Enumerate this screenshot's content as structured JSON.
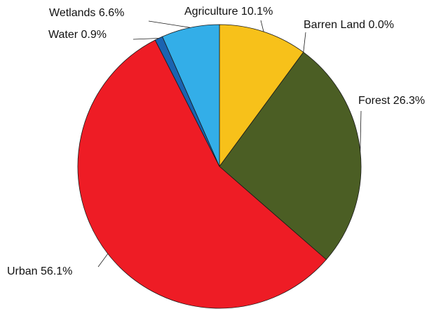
{
  "chart_data": {
    "type": "pie",
    "title": "",
    "start_angle_deg": 0,
    "direction": "clockwise",
    "slices": [
      {
        "label": "Agriculture",
        "value": 10.1,
        "text": "Agriculture 10.1%",
        "color": "#F7C11A"
      },
      {
        "label": "Barren Land",
        "value": 0.0,
        "text": "Barren Land 0.0%",
        "color": "#BFBFBF"
      },
      {
        "label": "Forest",
        "value": 26.3,
        "text": "Forest 26.3%",
        "color": "#4B5E24"
      },
      {
        "label": "Urban",
        "value": 56.1,
        "text": "Urban 56.1%",
        "color": "#EE1C25"
      },
      {
        "label": "Water",
        "value": 0.9,
        "text": "Water 0.9%",
        "color": "#1B63B0"
      },
      {
        "label": "Wetlands",
        "value": 6.6,
        "text": "Wetlands 6.6%",
        "color": "#33AEE8"
      }
    ]
  }
}
